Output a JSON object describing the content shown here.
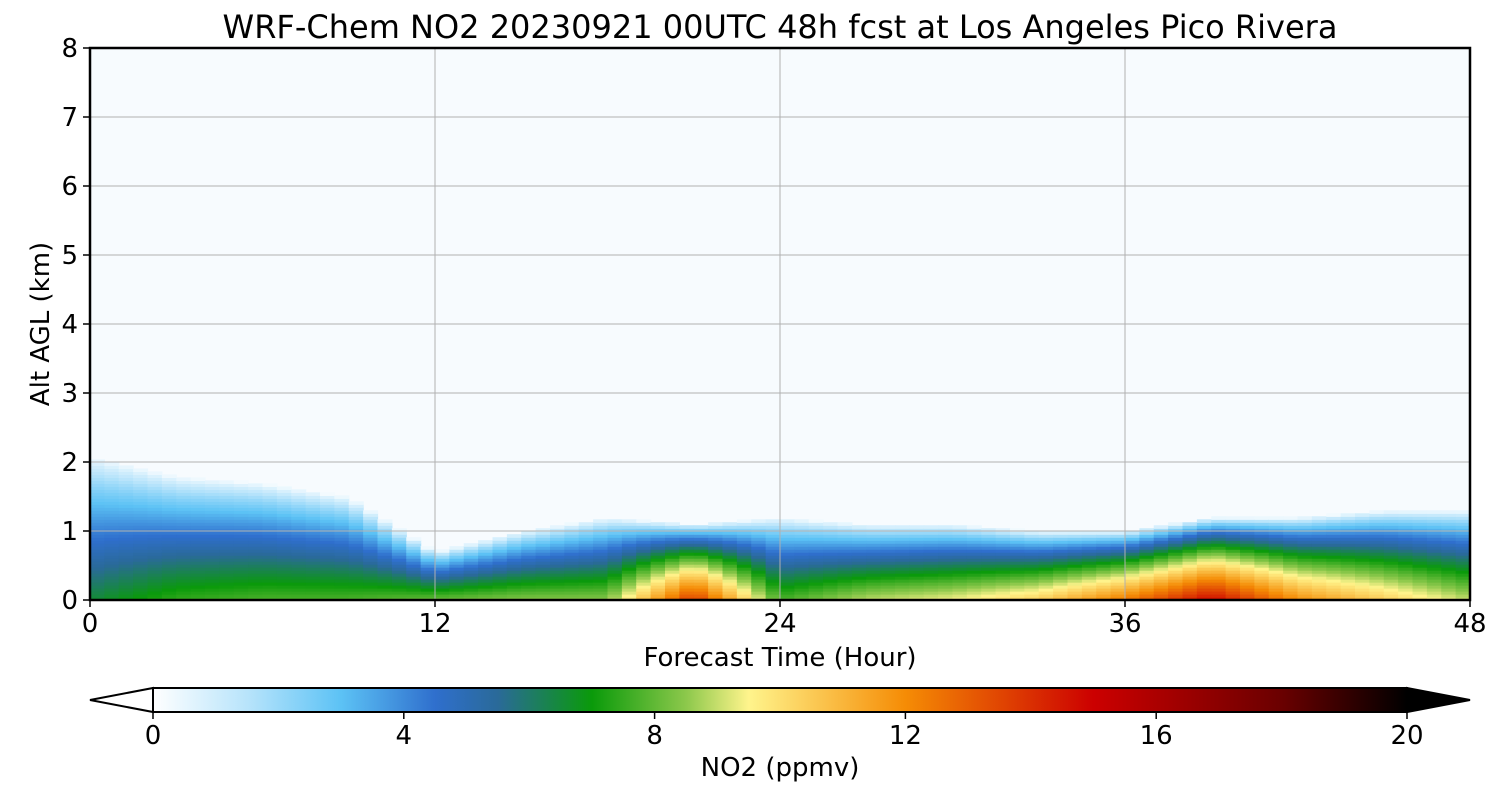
{
  "chart_data": {
    "type": "heatmap",
    "title": "WRF-Chem NO2  20230921 00UTC 48h fcst at Los Angeles Pico Rivera",
    "xlabel": "Forecast Time (Hour)",
    "ylabel": "Alt AGL (km)",
    "xlim": [
      0,
      48
    ],
    "ylim": [
      0,
      8
    ],
    "xticks": [
      0,
      12,
      24,
      36,
      48
    ],
    "yticks": [
      0,
      1,
      2,
      3,
      4,
      5,
      6,
      7,
      8
    ],
    "grid": true,
    "colorbar": {
      "label": "NO2  (ppmv)",
      "range": [
        0,
        20
      ],
      "ticks": [
        0,
        4,
        8,
        12,
        16,
        20
      ],
      "extend": "both",
      "orientation": "horizontal",
      "stops": [
        {
          "v": 0,
          "c": "#ffffff"
        },
        {
          "v": 1.5,
          "c": "#b8e4fb"
        },
        {
          "v": 3,
          "c": "#5cc2f5"
        },
        {
          "v": 4.5,
          "c": "#2f6fcd"
        },
        {
          "v": 5.5,
          "c": "#2a6a99"
        },
        {
          "v": 7,
          "c": "#0a9a0a"
        },
        {
          "v": 8.5,
          "c": "#8cc84b"
        },
        {
          "v": 9.5,
          "c": "#fff48c"
        },
        {
          "v": 12,
          "c": "#f58c05"
        },
        {
          "v": 15,
          "c": "#cc0000"
        },
        {
          "v": 18,
          "c": "#6a0000"
        },
        {
          "v": 20,
          "c": "#000000"
        }
      ]
    },
    "field_profiles": {
      "hours": [
        0,
        3,
        6,
        9,
        12,
        15,
        18,
        21,
        24,
        27,
        30,
        33,
        36,
        39,
        42,
        45,
        48
      ],
      "plume_top_km": [
        2.1,
        1.8,
        1.7,
        1.5,
        0.7,
        1.0,
        1.2,
        1.1,
        1.2,
        1.1,
        1.1,
        1.0,
        1.0,
        1.2,
        1.2,
        1.3,
        1.3
      ],
      "surface_no2_ppmv": [
        6.5,
        7.5,
        7.8,
        7.8,
        8.2,
        8.5,
        8.5,
        14.0,
        7.8,
        9.0,
        9.5,
        10.5,
        12.5,
        15.0,
        12.0,
        10.5,
        9.0
      ]
    }
  }
}
